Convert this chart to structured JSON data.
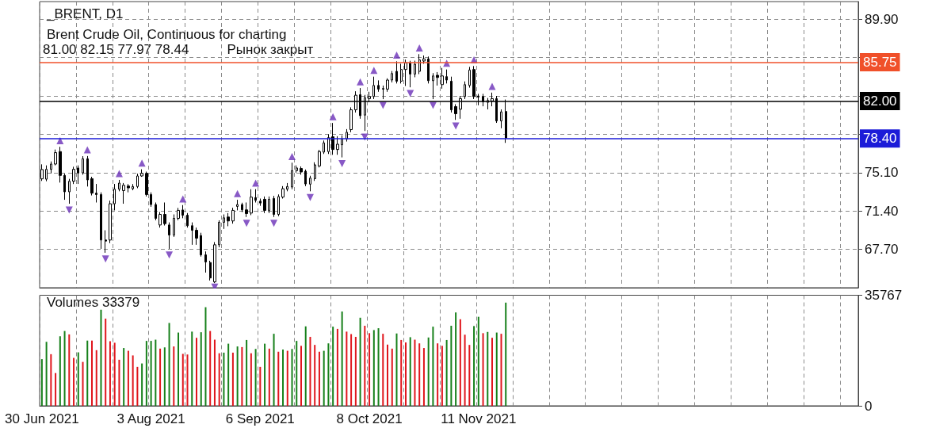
{
  "chart_data": [
    {
      "type": "candlestick",
      "title": "_BRENT, D1",
      "subtitle": "Brent Crude Oil, Continuous for charting",
      "annotations": [
        "81.00 82.15 77.97 78.44",
        "Рынок закрыт"
      ],
      "categories": [
        null,
        null,
        null,
        null,
        null,
        null,
        null,
        null,
        null,
        null,
        null,
        null,
        null,
        null,
        null,
        null,
        null,
        null,
        null,
        null,
        null,
        null,
        null,
        null,
        null,
        null,
        null,
        null,
        null,
        null,
        null,
        null,
        null,
        null,
        null,
        null,
        null,
        null,
        null,
        null,
        null,
        null,
        null,
        null,
        null,
        null,
        null,
        null,
        null,
        null,
        null,
        null,
        null,
        null,
        null,
        null,
        null,
        null,
        null,
        null,
        null,
        null,
        null,
        null,
        null,
        null,
        null,
        null,
        null,
        null,
        null,
        null,
        null,
        null,
        null,
        null,
        null,
        null,
        null,
        null,
        null,
        null,
        null,
        null,
        null,
        null,
        null,
        null,
        null,
        null,
        null,
        null,
        null,
        null,
        null,
        null,
        null,
        null,
        null,
        null,
        null,
        null,
        null,
        null,
        null,
        null,
        null,
        null,
        null,
        null,
        null,
        null,
        null,
        null,
        null,
        null,
        null,
        null,
        null,
        null,
        null,
        null,
        null,
        null,
        null,
        null,
        null,
        null,
        null,
        null,
        null,
        null,
        null,
        null,
        null,
        null,
        null,
        null,
        null,
        null,
        null,
        null,
        null,
        null,
        null,
        null,
        null,
        null,
        null,
        null,
        null,
        null,
        null,
        null,
        null,
        null,
        null,
        null,
        null,
        null,
        null,
        null,
        null,
        null,
        null,
        null,
        null,
        null,
        null,
        null,
        null,
        null,
        null,
        null,
        null,
        null,
        null,
        null,
        null,
        null
      ],
      "ohlc": [
        [
          74.5,
          75.9,
          74.3,
          75.4
        ],
        [
          74.47,
          75.8,
          74.27,
          75.42
        ],
        [
          75.42,
          76.18,
          75.03,
          75.93
        ],
        [
          75.93,
          77.33,
          75.8,
          77.03
        ],
        [
          77.13,
          77.59,
          74.14,
          74.83
        ],
        [
          74.83,
          75.0,
          72.48,
          73.25
        ],
        [
          73.25,
          74.5,
          72.1,
          74.27
        ],
        [
          74.27,
          75.67,
          74.0,
          75.42
        ],
        [
          75.55,
          75.8,
          74.01,
          75.08
        ],
        [
          75.08,
          76.69,
          74.9,
          76.44
        ],
        [
          76.44,
          76.7,
          73.76,
          74.4
        ],
        [
          74.52,
          74.7,
          72.9,
          73.12
        ],
        [
          73.12,
          74.01,
          72.22,
          72.99
        ],
        [
          72.99,
          73.2,
          67.75,
          68.6
        ],
        [
          68.6,
          69.54,
          67.37,
          68.5
        ],
        [
          68.6,
          72.4,
          68.3,
          72.1
        ],
        [
          72.1,
          74.01,
          71.46,
          73.5
        ],
        [
          73.5,
          74.4,
          73.3,
          74.09
        ],
        [
          73.37,
          74.1,
          72.1,
          73.88
        ],
        [
          73.81,
          74.0,
          73.2,
          73.63
        ],
        [
          73.55,
          74.0,
          73.4,
          73.76
        ],
        [
          73.76,
          75.0,
          73.6,
          74.78
        ],
        [
          74.78,
          75.42,
          74.7,
          75.03
        ],
        [
          75.03,
          75.2,
          72.8,
          72.99
        ],
        [
          72.99,
          73.2,
          71.8,
          72.02
        ],
        [
          72.02,
          72.22,
          70.5,
          70.69
        ],
        [
          70.05,
          71.3,
          69.8,
          71.07
        ],
        [
          71.07,
          72.22,
          70.0,
          70.18
        ],
        [
          70.05,
          70.3,
          67.75,
          69.08
        ],
        [
          69.08,
          71.07,
          68.9,
          70.69
        ],
        [
          70.69,
          71.7,
          70.5,
          71.46
        ],
        [
          71.5,
          71.97,
          70.7,
          70.99
        ],
        [
          70.99,
          71.2,
          69.8,
          69.98
        ],
        [
          69.98,
          70.3,
          68.14,
          69.54
        ],
        [
          69.54,
          69.8,
          68.14,
          68.78
        ],
        [
          69.03,
          69.3,
          67.0,
          67.17
        ],
        [
          67.17,
          67.5,
          65.46,
          66.48
        ],
        [
          66.43,
          66.6,
          64.7,
          64.94
        ],
        [
          64.56,
          68.4,
          64.45,
          68.14
        ],
        [
          68.14,
          70.5,
          67.9,
          70.31
        ],
        [
          70.31,
          71.07,
          69.67,
          70.74
        ],
        [
          70.82,
          71.2,
          69.93,
          70.44
        ],
        [
          70.44,
          71.71,
          70.18,
          71.46
        ],
        [
          71.84,
          72.48,
          71.46,
          72.02
        ],
        [
          72.02,
          72.2,
          71.3,
          71.51
        ],
        [
          71.51,
          72.22,
          70.82,
          71.15
        ],
        [
          71.2,
          73.5,
          71.0,
          72.74
        ],
        [
          72.69,
          73.5,
          72.22,
          72.43
        ],
        [
          72.35,
          72.6,
          71.9,
          72.17
        ],
        [
          72.53,
          72.8,
          71.2,
          71.46
        ],
        [
          71.46,
          72.8,
          71.2,
          72.53
        ],
        [
          72.61,
          72.86,
          70.82,
          71.07
        ],
        [
          71.07,
          73.0,
          70.9,
          72.79
        ],
        [
          72.74,
          73.8,
          72.6,
          73.55
        ],
        [
          73.5,
          74.1,
          73.3,
          73.76
        ],
        [
          73.71,
          76.06,
          73.5,
          75.29
        ],
        [
          75.29,
          75.8,
          75.1,
          75.55
        ],
        [
          75.5,
          75.7,
          74.9,
          75.16
        ],
        [
          75.24,
          75.4,
          73.8,
          74.01
        ],
        [
          73.99,
          74.8,
          73.3,
          74.57
        ],
        [
          74.52,
          76.1,
          74.3,
          75.85
        ],
        [
          75.75,
          77.3,
          75.6,
          77.13
        ],
        [
          77.08,
          78.2,
          76.9,
          77.97
        ],
        [
          77.13,
          78.8,
          76.9,
          78.48
        ],
        [
          78.56,
          79.89,
          76.82,
          77.33
        ],
        [
          77.33,
          78.61,
          76.82,
          77.84
        ],
        [
          77.79,
          78.7,
          76.57,
          78.35
        ],
        [
          78.35,
          79.3,
          78.1,
          78.99
        ],
        [
          79.25,
          81.4,
          79.0,
          81.16
        ],
        [
          81.16,
          82.95,
          80.9,
          82.57
        ],
        [
          82.62,
          83.26,
          80.3,
          80.6
        ],
        [
          80.65,
          82.6,
          79.12,
          82.31
        ],
        [
          82.24,
          82.9,
          81.9,
          82.44
        ],
        [
          82.44,
          84.36,
          82.2,
          83.51
        ],
        [
          83.51,
          84.0,
          82.9,
          83.16
        ],
        [
          83.21,
          83.5,
          82.19,
          83.16
        ],
        [
          83.16,
          84.2,
          82.9,
          84.03
        ],
        [
          84.03,
          84.9,
          83.8,
          84.66
        ],
        [
          84.87,
          85.84,
          83.7,
          83.92
        ],
        [
          83.92,
          85.6,
          83.7,
          85.05
        ],
        [
          85.05,
          86.0,
          83.46,
          85.69
        ],
        [
          85.69,
          85.89,
          83.33,
          84.61
        ],
        [
          84.61,
          85.9,
          84.3,
          85.56
        ],
        [
          84.87,
          86.53,
          84.6,
          85.97
        ],
        [
          85.87,
          86.4,
          85.6,
          86.07
        ],
        [
          86.07,
          86.3,
          83.7,
          83.97
        ],
        [
          83.97,
          84.7,
          82.19,
          84.43
        ],
        [
          84.49,
          84.8,
          83.5,
          84.28
        ],
        [
          83.59,
          85.2,
          83.2,
          84.43
        ],
        [
          84.36,
          85.05,
          83.7,
          84.03
        ],
        [
          83.92,
          84.36,
          80.9,
          81.16
        ],
        [
          81.47,
          81.7,
          80.19,
          80.78
        ],
        [
          81.22,
          82.5,
          80.3,
          82.24
        ],
        [
          82.44,
          83.9,
          82.2,
          83.59
        ],
        [
          83.51,
          85.3,
          83.3,
          85.0
        ],
        [
          85.05,
          85.38,
          82.2,
          82.44
        ],
        [
          82.49,
          82.7,
          81.6,
          82.39
        ],
        [
          82.44,
          82.7,
          81.5,
          81.93
        ],
        [
          81.88,
          82.3,
          81.2,
          82.06
        ],
        [
          82.01,
          82.82,
          81.5,
          82.24
        ],
        [
          82.24,
          82.5,
          79.9,
          80.09
        ],
        [
          80.09,
          81.2,
          79.38,
          80.96
        ],
        [
          81.0,
          82.15,
          77.97,
          78.44
        ],
        null,
        null,
        null,
        null,
        null,
        null,
        null,
        null,
        null,
        null,
        null,
        null,
        null,
        null,
        null,
        null,
        null,
        null,
        null,
        null,
        null,
        null,
        null,
        null,
        null,
        null,
        null,
        null,
        null,
        null,
        null,
        null,
        null,
        null,
        null,
        null,
        null,
        null,
        null,
        null,
        null,
        null,
        null,
        null,
        null,
        null,
        null,
        null,
        null,
        null,
        null,
        null,
        null,
        null,
        null,
        null,
        null,
        null,
        null,
        null,
        null,
        null,
        null,
        null,
        null,
        null,
        null,
        null,
        null,
        null,
        null,
        null,
        null,
        null,
        null,
        null,
        null
      ],
      "color": "#000000",
      "ylim": [
        64.0,
        91.6
      ],
      "yticks": [
        {
          "value": 67.7,
          "label": "67.70"
        },
        {
          "value": 71.4,
          "label": "71.40"
        },
        {
          "value": 75.1,
          "label": "75.10"
        },
        {
          "value": 78.8,
          "label": null
        },
        {
          "value": 82.5,
          "label": null
        },
        {
          "value": 86.2,
          "label": null
        },
        {
          "value": 89.9,
          "label": "89.90"
        }
      ],
      "grid": true,
      "tick_labels": "y",
      "marker": "triangle",
      "ref_lines": [
        {
          "axis": "y",
          "value": 85.75,
          "label": "85.75",
          "color": "#f0502a"
        },
        {
          "axis": "y",
          "value": 82.0,
          "label": "82.00",
          "color": "#000000"
        },
        {
          "axis": "y",
          "value": 78.4,
          "label": "78.40",
          "color": "#1c1cd8"
        }
      ],
      "series": [
        {
          "type": "scatter",
          "color": "#6a2fb8",
          "values": [
            null,
            null,
            null,
            null,
            78.19,
            null,
            null,
            null,
            null,
            null,
            77.3,
            null,
            null,
            null,
            null,
            null,
            null,
            75.0,
            null,
            null,
            null,
            null,
            76.02,
            null,
            null,
            null,
            null,
            null,
            null,
            null,
            null,
            72.57,
            null,
            null,
            null,
            null,
            null,
            null,
            null,
            null,
            null,
            null,
            null,
            73.08,
            null,
            null,
            null,
            74.1,
            null,
            null,
            null,
            null,
            null,
            null,
            null,
            76.66,
            null,
            null,
            null,
            null,
            null,
            null,
            null,
            null,
            80.49,
            null,
            null,
            null,
            null,
            null,
            83.86,
            null,
            null,
            84.96,
            null,
            null,
            null,
            null,
            86.44,
            null,
            null,
            null,
            null,
            87.13,
            null,
            null,
            null,
            null,
            null,
            85.65,
            null,
            null,
            null,
            null,
            null,
            85.98,
            null,
            null,
            null,
            83.42,
            null,
            null,
            null,
            null,
            null,
            null,
            null,
            null,
            null,
            null,
            null,
            null,
            null,
            null,
            null,
            null,
            null,
            null,
            null,
            null,
            null,
            null,
            null,
            null,
            null,
            null,
            null,
            null,
            null,
            null,
            null,
            null,
            null,
            null,
            null,
            null,
            null,
            null,
            null,
            null,
            null,
            null,
            null,
            null,
            null,
            null,
            null,
            null,
            null,
            null,
            null,
            null,
            null,
            null,
            null,
            null,
            null,
            null,
            null,
            null,
            null,
            null,
            null,
            null,
            null,
            null,
            null,
            null,
            null,
            null,
            null,
            null,
            null,
            null,
            null,
            null,
            null,
            null,
            null,
            null
          ]
        },
        {
          "type": "scatter",
          "color": "#6a2fb8",
          "values": [
            null,
            null,
            null,
            null,
            null,
            null,
            71.5,
            null,
            null,
            null,
            null,
            null,
            null,
            null,
            66.77,
            null,
            null,
            null,
            null,
            null,
            null,
            null,
            null,
            null,
            null,
            null,
            null,
            null,
            67.15,
            null,
            null,
            null,
            null,
            null,
            null,
            null,
            null,
            null,
            64.05,
            null,
            null,
            null,
            null,
            null,
            null,
            70.22,
            null,
            null,
            null,
            null,
            null,
            70.22,
            null,
            null,
            null,
            null,
            null,
            null,
            null,
            72.7,
            null,
            null,
            null,
            null,
            null,
            null,
            75.97,
            null,
            null,
            null,
            null,
            78.52,
            null,
            null,
            null,
            81.59,
            null,
            null,
            null,
            null,
            null,
            82.73,
            null,
            null,
            null,
            null,
            81.59,
            null,
            null,
            null,
            null,
            79.59,
            null,
            null,
            null,
            null,
            null,
            null,
            null,
            null,
            null,
            null,
            null,
            null,
            null,
            null,
            null,
            null,
            null,
            null,
            null,
            null,
            null,
            null,
            null,
            null,
            null,
            null,
            null,
            null,
            null,
            null,
            null,
            null,
            null,
            null,
            null,
            null,
            null,
            null,
            null,
            null,
            null,
            null,
            null,
            null,
            null,
            null,
            null,
            null,
            null,
            null,
            null,
            null,
            null,
            null,
            null,
            null,
            null,
            null,
            null,
            null,
            null,
            null,
            null,
            null,
            null,
            null,
            null,
            null,
            null,
            null,
            null,
            null,
            null,
            null,
            null,
            null,
            null,
            null,
            null,
            null,
            null,
            null,
            null,
            null,
            null,
            null,
            null,
            null
          ]
        }
      ]
    },
    {
      "type": "bar",
      "title": "Volumes 33379",
      "categories": [
        "30 Jun 2021",
        null,
        null,
        null,
        null,
        null,
        null,
        null,
        null,
        null,
        null,
        null,
        null,
        null,
        null,
        null,
        null,
        null,
        null,
        null,
        null,
        null,
        null,
        null,
        "3 Aug 2021",
        null,
        null,
        null,
        null,
        null,
        null,
        null,
        null,
        null,
        null,
        null,
        null,
        null,
        null,
        null,
        null,
        null,
        null,
        null,
        null,
        null,
        null,
        null,
        "6 Sep 2021",
        null,
        null,
        null,
        null,
        null,
        null,
        null,
        null,
        null,
        null,
        null,
        null,
        null,
        null,
        null,
        null,
        null,
        null,
        null,
        null,
        null,
        null,
        null,
        "8 Oct 2021",
        null,
        null,
        null,
        null,
        null,
        null,
        null,
        null,
        null,
        null,
        null,
        null,
        null,
        null,
        null,
        null,
        null,
        null,
        null,
        null,
        null,
        null,
        null,
        "11 Nov 2021",
        null,
        null,
        null,
        null,
        null,
        null,
        null,
        null,
        null,
        null,
        null,
        null,
        null,
        null,
        null,
        null,
        null,
        null,
        null,
        null,
        null,
        null,
        null,
        null,
        null,
        null,
        null,
        null,
        null,
        null,
        null,
        null,
        null,
        null,
        null,
        null,
        null,
        null,
        null,
        null,
        null,
        null,
        null,
        null,
        null,
        null,
        null,
        null,
        null,
        null,
        null,
        null,
        null,
        null,
        null,
        null,
        null,
        null,
        null,
        null,
        null,
        null,
        null,
        null,
        null,
        null,
        null,
        null,
        null,
        null,
        null,
        null,
        null,
        null,
        null,
        null,
        null,
        null,
        null,
        null,
        null,
        null,
        null
      ],
      "values": [
        15100,
        20700,
        16700,
        10600,
        22500,
        24200,
        23100,
        15500,
        17300,
        14200,
        21100,
        21100,
        18000,
        31100,
        28200,
        20900,
        20400,
        14900,
        18700,
        17800,
        16300,
        12600,
        13700,
        21000,
        21000,
        21400,
        18500,
        18900,
        26800,
        19200,
        23700,
        16800,
        16600,
        24000,
        22000,
        23800,
        31900,
        24200,
        21400,
        17000,
        17200,
        20100,
        17200,
        19200,
        19000,
        21300,
        17000,
        18400,
        12600,
        20100,
        18500,
        23300,
        17500,
        18200,
        17800,
        18400,
        21000,
        19400,
        25700,
        22300,
        19700,
        17500,
        17800,
        20200,
        25600,
        24900,
        30500,
        24000,
        23200,
        22300,
        28500,
        25900,
        23500,
        24500,
        25100,
        23300,
        19800,
        18500,
        23400,
        21300,
        20500,
        22200,
        21400,
        20200,
        18700,
        22100,
        25600,
        20200,
        19400,
        21300,
        25900,
        30200,
        28000,
        23000,
        19700,
        25800,
        28800,
        23500,
        23900,
        22000,
        23700,
        23300,
        33379,
        null,
        null,
        null,
        null,
        null,
        null,
        null,
        null,
        null,
        null,
        null,
        null,
        null,
        null,
        null,
        null,
        null,
        null,
        null,
        null,
        null,
        null,
        null,
        null,
        null,
        null,
        null,
        null,
        null,
        null,
        null,
        null,
        null,
        null,
        null,
        null,
        null,
        null,
        null,
        null,
        null,
        null,
        null,
        null,
        null,
        null,
        null,
        null,
        null,
        null,
        null,
        null,
        null,
        null,
        null,
        null,
        null,
        null,
        null,
        null,
        null,
        null,
        null,
        null,
        null,
        null,
        null,
        null,
        null,
        null,
        null,
        null,
        null,
        null,
        null,
        null,
        null
      ],
      "colors": [
        "#16801a",
        "#16801a",
        "#e0161c",
        "#e0161c",
        "#16801a",
        "#16801a",
        "#e0161c",
        "#e0161c",
        "#16801a",
        "#e0161c",
        "#16801a",
        "#e0161c",
        "#e0161c",
        "#16801a",
        "#e0161c",
        "#e0161c",
        "#e0161c",
        "#e0161c",
        "#16801a",
        "#e0161c",
        "#e0161c",
        "#e0161c",
        "#16801a",
        "#16801a",
        "#16801a",
        "#16801a",
        "#e0161c",
        "#16801a",
        "#16801a",
        "#e0161c",
        "#16801a",
        "#e0161c",
        "#e0161c",
        "#16801a",
        "#e0161c",
        "#16801a",
        "#16801a",
        "#e0161c",
        "#e0161c",
        "#e0161c",
        "#16801a",
        "#16801a",
        "#e0161c",
        "#16801a",
        "#e0161c",
        "#16801a",
        "#e0161c",
        "#16801a",
        "#e0161c",
        "#16801a",
        "#e0161c",
        "#16801a",
        "#e0161c",
        "#16801a",
        "#e0161c",
        "#16801a",
        "#16801a",
        "#e0161c",
        "#16801a",
        "#e0161c",
        "#e0161c",
        "#e0161c",
        "#16801a",
        "#16801a",
        "#16801a",
        "#e0161c",
        "#16801a",
        "#e0161c",
        "#e0161c",
        "#e0161c",
        "#16801a",
        "#e0161c",
        "#e0161c",
        "#16801a",
        "#16801a",
        "#e0161c",
        "#e0161c",
        "#e0161c",
        "#16801a",
        "#e0161c",
        "#e0161c",
        "#16801a",
        "#e0161c",
        "#e0161c",
        "#e0161c",
        "#16801a",
        "#16801a",
        "#e0161c",
        "#e0161c",
        "#16801a",
        "#16801a",
        "#16801a",
        "#e0161c",
        "#e0161c",
        "#e0161c",
        "#16801a",
        "#16801a",
        "#e0161c",
        "#16801a",
        "#e0161c",
        "#16801a",
        "#e0161c",
        "#16801a",
        null,
        null,
        null,
        null,
        null,
        null,
        null,
        null,
        null,
        null,
        null,
        null,
        null,
        null,
        null,
        null,
        null,
        null,
        null,
        null,
        null,
        null,
        null,
        null,
        null,
        null,
        null,
        null,
        null,
        null,
        null,
        null,
        null,
        null,
        null,
        null,
        null,
        null,
        null,
        null,
        null,
        null,
        null,
        null,
        null,
        null,
        null,
        null,
        null,
        null,
        null,
        null,
        null,
        null,
        null,
        null,
        null,
        null,
        null,
        null,
        null,
        null,
        null,
        null,
        null,
        null,
        null,
        null,
        null,
        null,
        null,
        null,
        null,
        null,
        null,
        null,
        null
      ],
      "ylim": [
        0,
        35767
      ],
      "yticks": [
        0,
        35767
      ],
      "grid": "x"
    }
  ]
}
